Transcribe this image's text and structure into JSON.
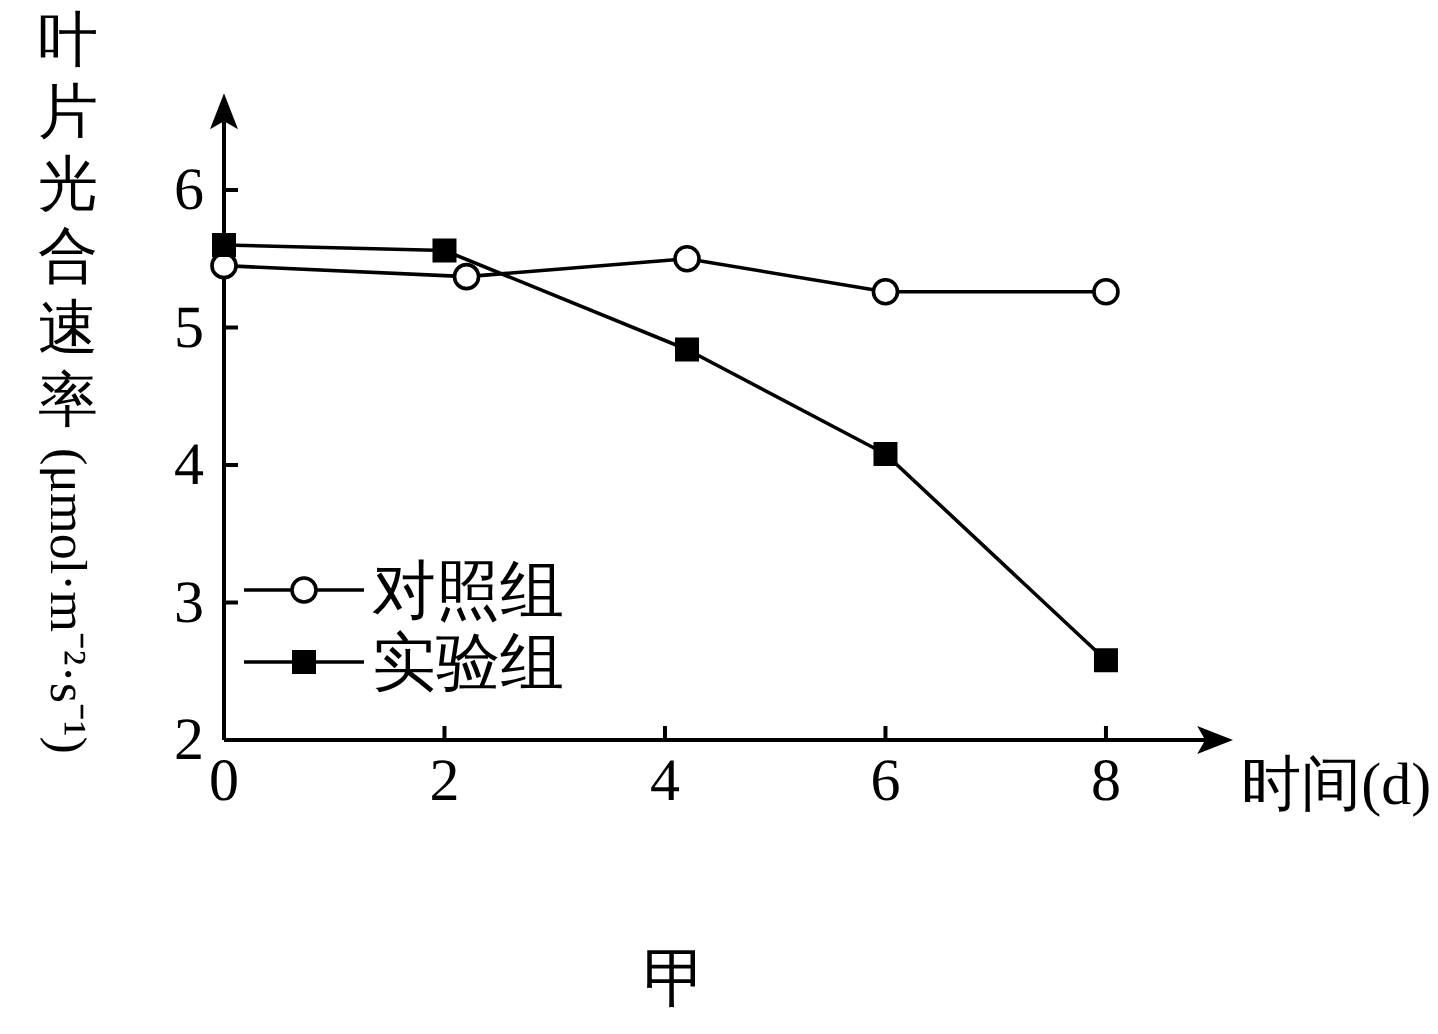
{
  "chart_data": {
    "type": "line",
    "xlabel": "时间(d)",
    "ylabel": "叶片光合速率(μmol·m⁻²·s⁻¹)",
    "annotations": [
      "甲"
    ],
    "xlim": [
      0,
      8.9
    ],
    "ylim": [
      2,
      6.5
    ],
    "xticks": [
      0,
      2,
      4,
      6,
      8
    ],
    "yticks": [
      2,
      3,
      4,
      5,
      6
    ],
    "legend": "bottom left",
    "line_style": "solid",
    "series": [
      {
        "name": "对照组",
        "color": "#000000",
        "marker": "circle",
        "x": [
          0,
          2.2,
          4.2,
          6,
          8
        ],
        "values": [
          5.45,
          5.37,
          5.5,
          5.26,
          5.26
        ]
      },
      {
        "name": "实验组",
        "color": "#000000",
        "marker": "square",
        "x": [
          0,
          2,
          4.2,
          6,
          8
        ],
        "values": [
          5.6,
          5.56,
          4.84,
          4.08,
          2.58
        ]
      }
    ]
  }
}
